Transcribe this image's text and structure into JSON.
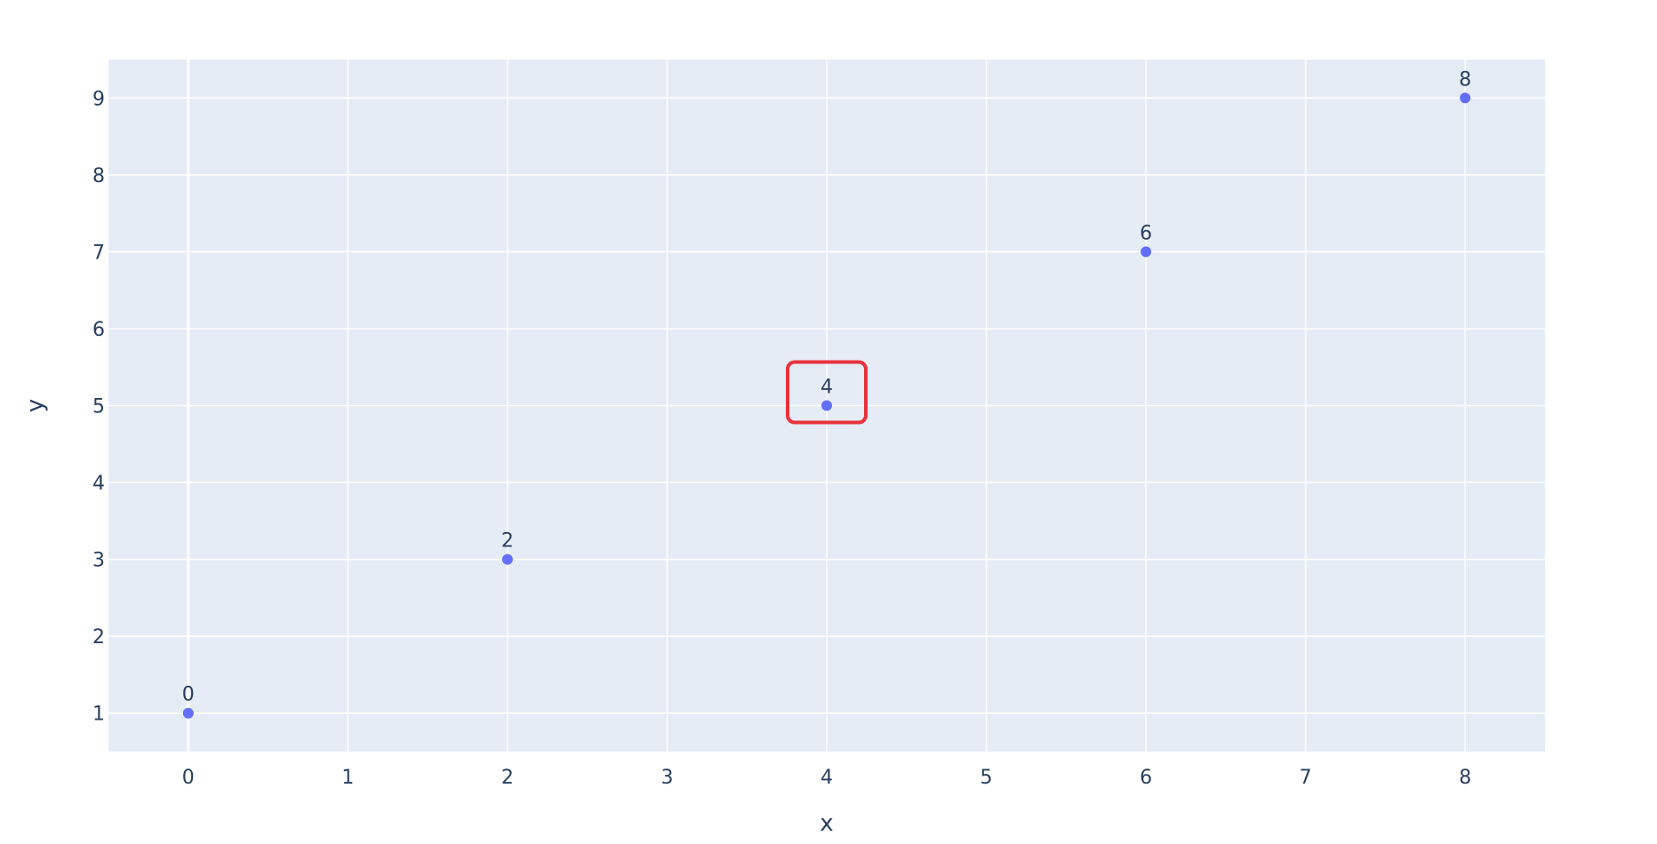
{
  "chart_data": {
    "type": "scatter",
    "title": "",
    "xlabel": "x",
    "ylabel": "y",
    "xlim": [
      -0.5,
      8.5
    ],
    "ylim": [
      0.5,
      9.5
    ],
    "x_ticks": [
      "0",
      "1",
      "2",
      "3",
      "4",
      "5",
      "6",
      "7",
      "8"
    ],
    "y_ticks": [
      "1",
      "2",
      "3",
      "4",
      "5",
      "6",
      "7",
      "8",
      "9"
    ],
    "grid": true,
    "series": [
      {
        "x": [
          0,
          2,
          4,
          6,
          8
        ],
        "y": [
          1,
          3,
          5,
          7,
          9
        ],
        "labels": [
          "0",
          "2",
          "4",
          "6",
          "8"
        ],
        "color": "#636efa"
      }
    ],
    "highlight": {
      "point_index": 2,
      "color": "#e8323c"
    },
    "plot_background": "#e5ecf6",
    "grid_color": "#ffffff",
    "text_color": "#2a3f5f"
  }
}
